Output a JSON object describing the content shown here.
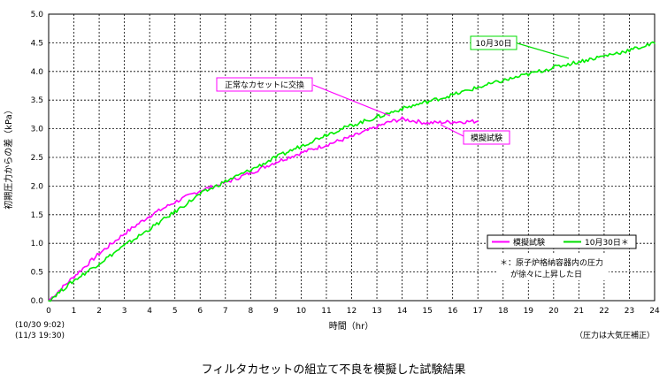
{
  "chart_data": {
    "type": "line",
    "title": "フィルタカセットの組立て不良を模擬した試験結果",
    "xlabel": "時間（hr）",
    "ylabel": "初期圧力からの差（kPa）",
    "xlim": [
      0,
      24
    ],
    "ylim": [
      0,
      5.0
    ],
    "x_ticks": [
      "0",
      "1",
      "2",
      "3",
      "4",
      "5",
      "6",
      "7",
      "8",
      "9",
      "10",
      "11",
      "12",
      "13",
      "14",
      "15",
      "16",
      "17",
      "18",
      "19",
      "20",
      "21",
      "22",
      "23",
      "24"
    ],
    "y_ticks": [
      "0.0",
      "0.5",
      "1.0",
      "1.5",
      "2.0",
      "2.5",
      "3.0",
      "3.5",
      "4.0",
      "4.5",
      "5.0"
    ],
    "grid": true,
    "x_start_notes": [
      "(10/30 9:02)",
      "(11/3 19:30)"
    ],
    "pressure_note": "（圧力は大気圧補正）",
    "series": [
      {
        "name": "模擬試験",
        "color": "#ff00ff",
        "x": [
          0,
          1,
          2,
          3,
          4,
          5,
          6,
          7,
          8,
          9,
          10,
          11,
          12,
          13,
          13.5,
          14,
          15,
          16,
          17
        ],
        "y": [
          0.0,
          0.42,
          0.82,
          1.17,
          1.48,
          1.72,
          1.92,
          2.06,
          2.23,
          2.42,
          2.58,
          2.72,
          2.86,
          3.03,
          3.12,
          3.17,
          3.1,
          3.12,
          3.13
        ]
      },
      {
        "name": "10月30日＊",
        "color": "#00ee00",
        "x": [
          0,
          1,
          2,
          3,
          4,
          5,
          6,
          7,
          8,
          9,
          10,
          11,
          12,
          13,
          14,
          15,
          16,
          17,
          18,
          19,
          20,
          21,
          22,
          23,
          24
        ],
        "y": [
          0.0,
          0.35,
          0.65,
          0.96,
          1.25,
          1.55,
          1.86,
          2.08,
          2.28,
          2.5,
          2.7,
          2.9,
          3.06,
          3.2,
          3.35,
          3.47,
          3.59,
          3.72,
          3.84,
          3.95,
          4.07,
          4.17,
          4.27,
          4.37,
          4.49
        ]
      }
    ],
    "annotations": [
      {
        "text": "正常なカセットに交換"
      },
      {
        "text": "10月30日"
      },
      {
        "text": "模擬試験"
      }
    ],
    "legend": {
      "placement": "lower-right",
      "items": [
        "模擬試験",
        "10月30日＊"
      ]
    },
    "footnote": [
      "＊：原子炉格納容器内の圧力",
      "が徐々に上昇した日"
    ]
  }
}
